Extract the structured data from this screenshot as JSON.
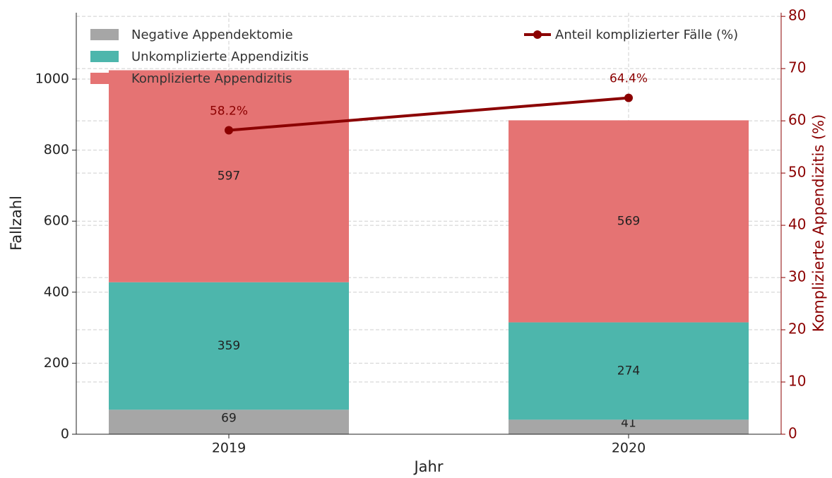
{
  "chart_data": {
    "type": "bar",
    "stacked": true,
    "categories": [
      "2019",
      "2020"
    ],
    "xlabel": "Jahr",
    "ylabel": "Fallzahl",
    "y2label": "Komplizierte Appendizitis (%)",
    "ylim": [
      0,
      1187
    ],
    "yticks": [
      0,
      200,
      400,
      600,
      800,
      1000
    ],
    "y2lim": [
      0,
      80.7
    ],
    "y2ticks": [
      0,
      10,
      20,
      30,
      40,
      50,
      60,
      70,
      80
    ],
    "y2color": "#8b0000",
    "grid": true,
    "series": [
      {
        "name": "Negative Appendektomie",
        "color": "#a6a6a6",
        "values": [
          69,
          41
        ]
      },
      {
        "name": "Unkomplizierte Appendizitis",
        "color": "#4db6ac",
        "values": [
          359,
          274
        ]
      },
      {
        "name": "Komplizierte Appendizitis",
        "color": "#e57373",
        "values": [
          597,
          569
        ]
      },
      {
        "name": "Anteil komplizierter Fälle (%)",
        "type": "line",
        "axis": "y2",
        "color": "#8b0000",
        "values": [
          58.2,
          64.4
        ],
        "value_labels": [
          "58.2%",
          "64.4%"
        ]
      }
    ]
  }
}
